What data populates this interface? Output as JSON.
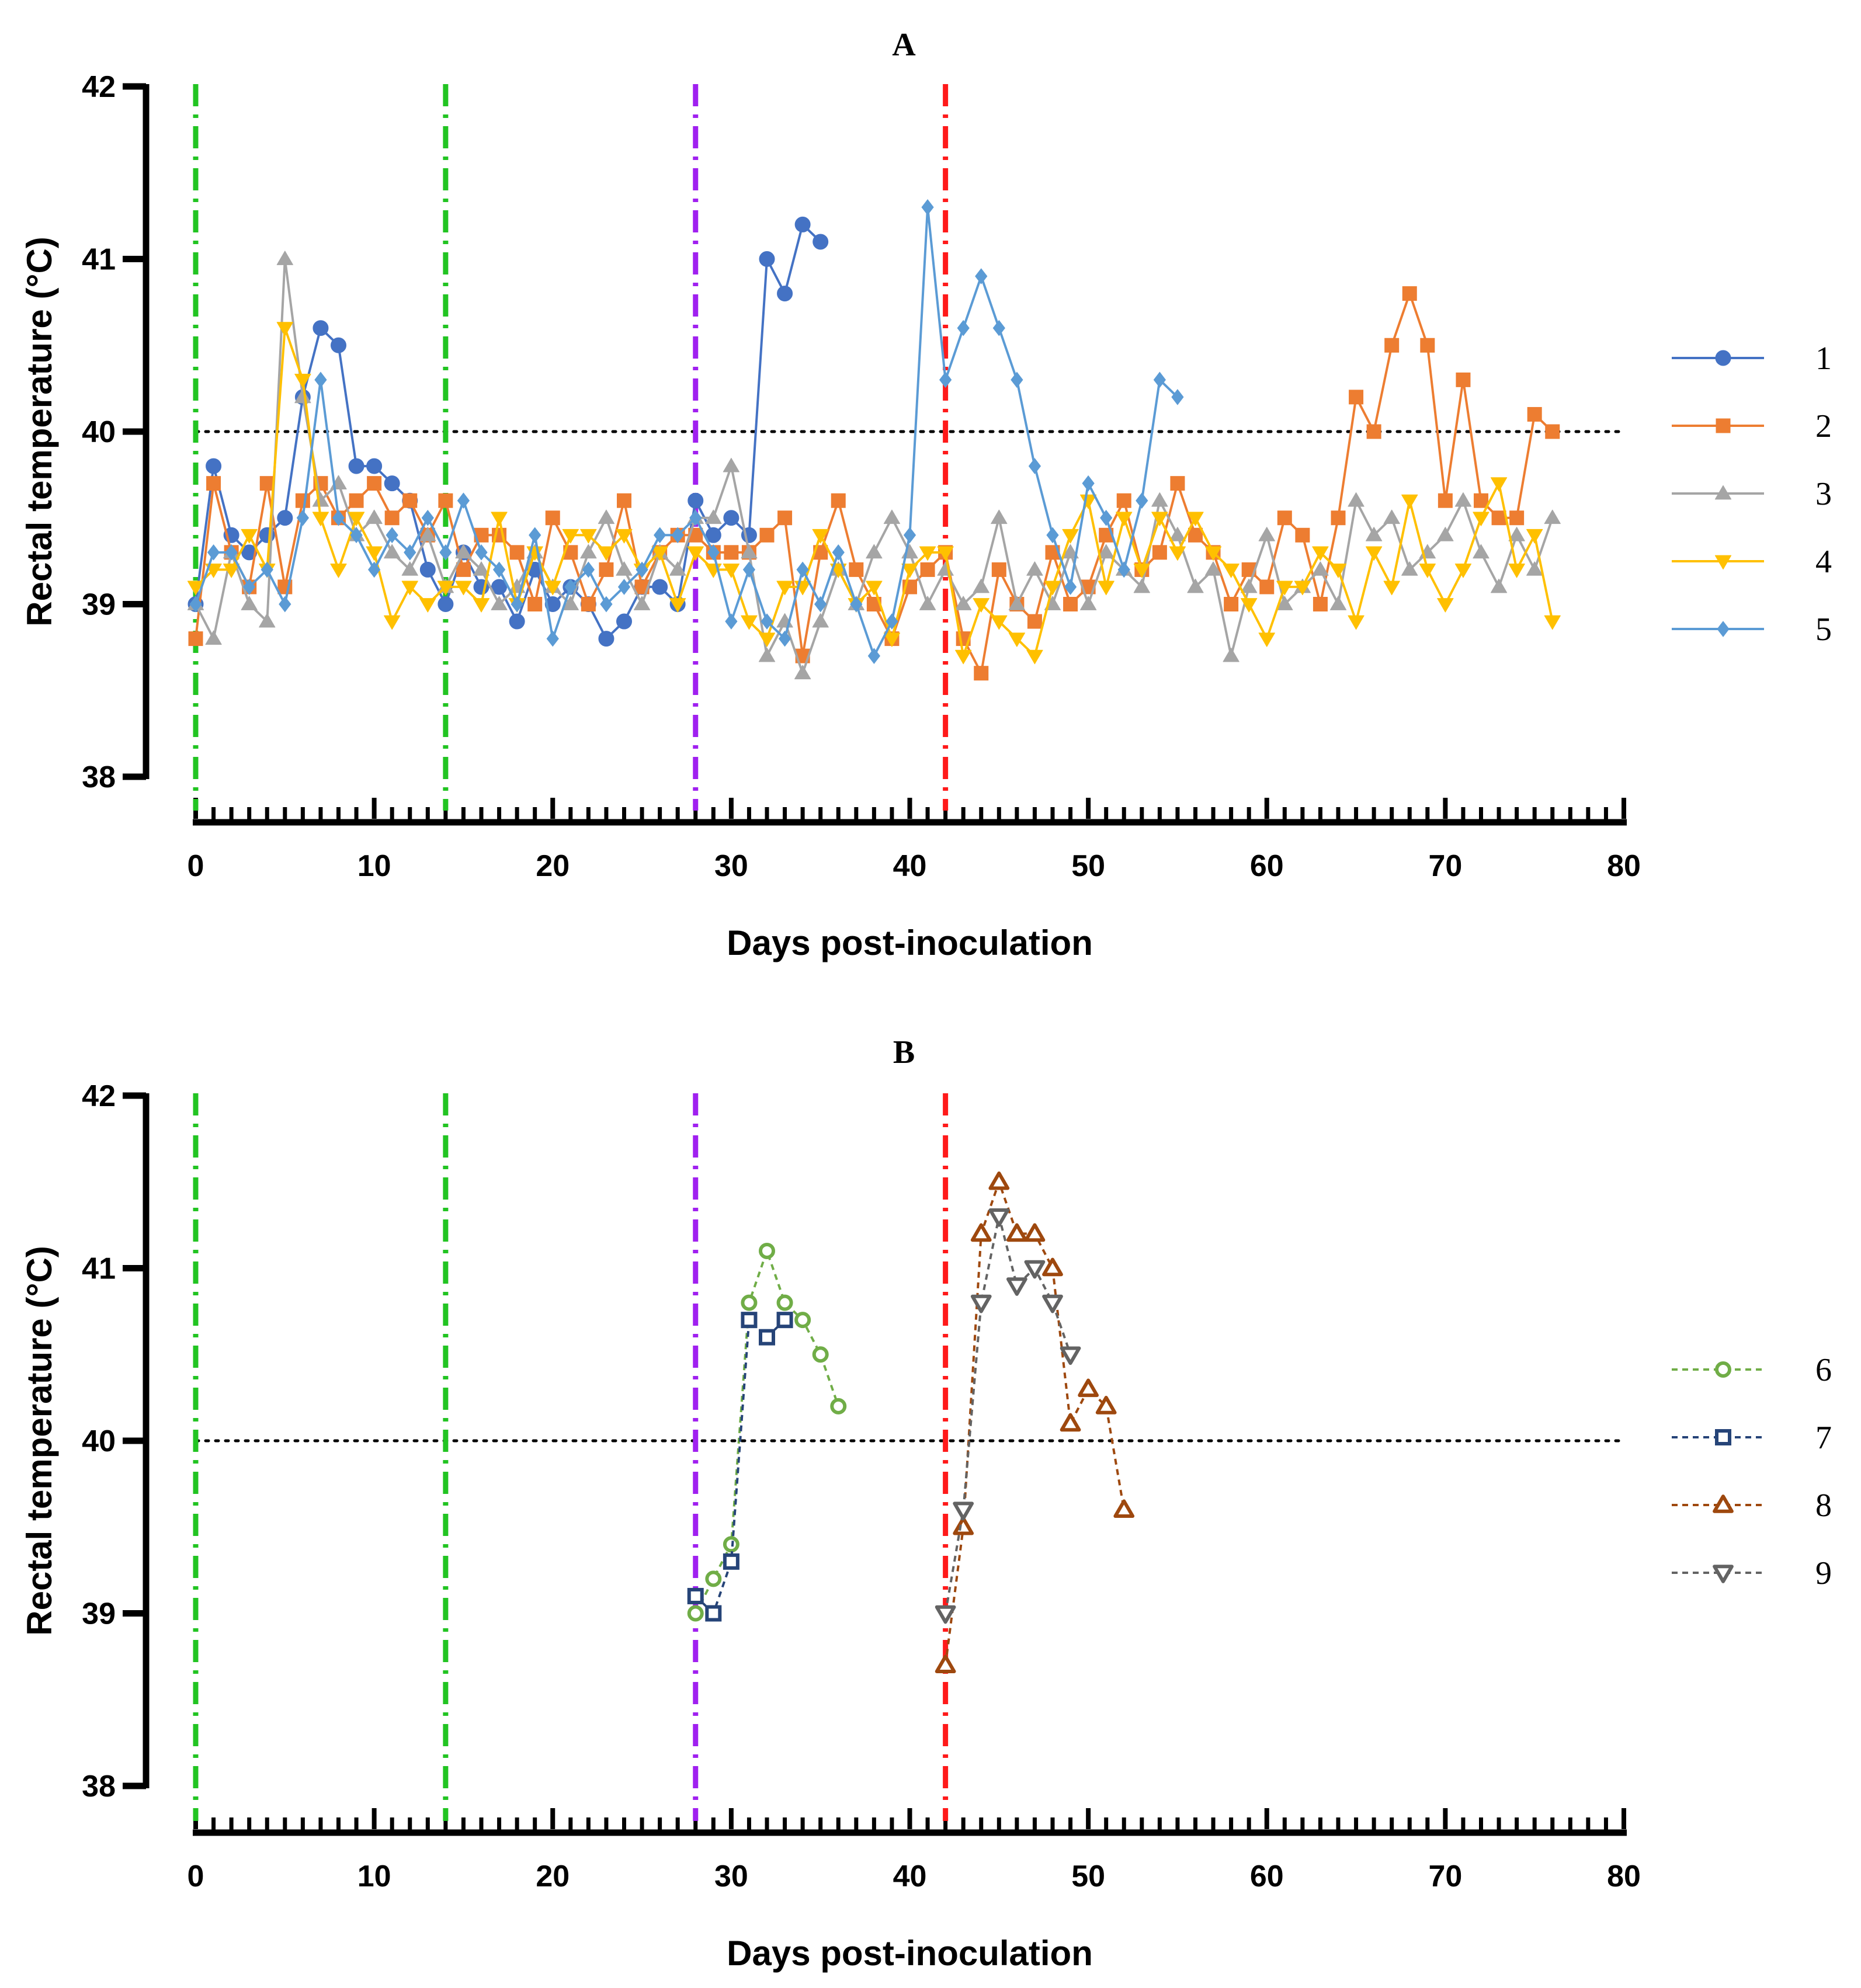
{
  "chart_data": [
    {
      "type": "line",
      "title": "A",
      "xlabel": "Days post-inoculation",
      "ylabel": "Rectal temperature (°C)",
      "xlim": [
        0,
        80
      ],
      "ylim": [
        38,
        42
      ],
      "xticks": [
        0,
        10,
        20,
        30,
        40,
        50,
        60,
        70,
        80
      ],
      "yticks": [
        38,
        39,
        40,
        41,
        42
      ],
      "threshold": 40,
      "event_lines": [
        {
          "x": 0,
          "color": "#22c422"
        },
        {
          "x": 14,
          "color": "#22c422"
        },
        {
          "x": 28,
          "color": "#a020f0"
        },
        {
          "x": 42,
          "color": "#ff1a1a"
        }
      ],
      "legend_position": "right",
      "series": [
        {
          "name": "1",
          "color": "#4472c4",
          "marker": "circle",
          "dash": false,
          "x": [
            0,
            1,
            2,
            3,
            4,
            5,
            6,
            7,
            8,
            9,
            10,
            11,
            12,
            13,
            14,
            15,
            16,
            17,
            18,
            19,
            20,
            21,
            22,
            23,
            24,
            25,
            26,
            27,
            28,
            29,
            30,
            31,
            32,
            33,
            34,
            35
          ],
          "y": [
            39.0,
            39.8,
            39.4,
            39.3,
            39.4,
            39.5,
            40.2,
            40.6,
            40.5,
            39.8,
            39.8,
            39.7,
            39.6,
            39.2,
            39.0,
            39.3,
            39.1,
            39.1,
            38.9,
            39.2,
            39.0,
            39.1,
            39.0,
            38.8,
            38.9,
            39.1,
            39.1,
            39.0,
            39.6,
            39.4,
            39.5,
            39.4,
            41.0,
            40.8,
            41.2,
            41.1
          ]
        },
        {
          "name": "2",
          "color": "#ed7d31",
          "marker": "square",
          "dash": false,
          "x": [
            0,
            1,
            2,
            3,
            4,
            5,
            6,
            7,
            8,
            9,
            10,
            11,
            12,
            13,
            14,
            15,
            16,
            17,
            18,
            19,
            20,
            21,
            22,
            23,
            24,
            25,
            26,
            27,
            28,
            29,
            30,
            31,
            32,
            33,
            34,
            35,
            36,
            37,
            38,
            39,
            40,
            41,
            42,
            43,
            44,
            45,
            46,
            47,
            48,
            49,
            50,
            51,
            52,
            53,
            54,
            55,
            56,
            57,
            58,
            59,
            60,
            61,
            62,
            63,
            64,
            65,
            66,
            67,
            68,
            69,
            70,
            71,
            72,
            73,
            74,
            75,
            76
          ],
          "y": [
            38.8,
            39.7,
            39.3,
            39.1,
            39.7,
            39.1,
            39.6,
            39.7,
            39.5,
            39.6,
            39.7,
            39.5,
            39.6,
            39.4,
            39.6,
            39.2,
            39.4,
            39.4,
            39.3,
            39.0,
            39.5,
            39.3,
            39.0,
            39.2,
            39.6,
            39.1,
            39.3,
            39.4,
            39.4,
            39.3,
            39.3,
            39.3,
            39.4,
            39.5,
            38.7,
            39.3,
            39.6,
            39.2,
            39.0,
            38.8,
            39.1,
            39.2,
            39.3,
            38.8,
            38.6,
            39.2,
            39.0,
            38.9,
            39.3,
            39.0,
            39.1,
            39.4,
            39.6,
            39.2,
            39.3,
            39.7,
            39.4,
            39.3,
            39.0,
            39.2,
            39.1,
            39.5,
            39.4,
            39.0,
            39.5,
            40.2,
            40.0,
            40.5,
            40.8,
            40.5,
            39.6,
            40.3,
            39.6,
            39.5,
            39.5,
            40.1,
            40.0
          ]
        },
        {
          "name": "3",
          "color": "#a5a5a5",
          "marker": "triangle-up",
          "dash": false,
          "x": [
            0,
            1,
            2,
            3,
            4,
            5,
            6,
            7,
            8,
            9,
            10,
            11,
            12,
            13,
            14,
            15,
            16,
            17,
            18,
            19,
            20,
            21,
            22,
            23,
            24,
            25,
            26,
            27,
            28,
            29,
            30,
            31,
            32,
            33,
            34,
            35,
            36,
            37,
            38,
            39,
            40,
            41,
            42,
            43,
            44,
            45,
            46,
            47,
            48,
            49,
            50,
            51,
            52,
            53,
            54,
            55,
            56,
            57,
            58,
            59,
            60,
            61,
            62,
            63,
            64,
            65,
            66,
            67,
            68,
            69,
            70,
            71,
            72,
            73,
            74,
            75,
            76
          ],
          "y": [
            39.0,
            38.8,
            39.3,
            39.0,
            38.9,
            41.0,
            40.2,
            39.6,
            39.7,
            39.4,
            39.5,
            39.3,
            39.2,
            39.4,
            39.1,
            39.3,
            39.2,
            39.0,
            39.1,
            39.3,
            39.1,
            39.0,
            39.3,
            39.5,
            39.2,
            39.0,
            39.3,
            39.2,
            39.5,
            39.5,
            39.8,
            39.3,
            38.7,
            38.9,
            38.6,
            38.9,
            39.2,
            39.0,
            39.3,
            39.5,
            39.3,
            39.0,
            39.2,
            39.0,
            39.1,
            39.5,
            39.0,
            39.2,
            39.0,
            39.3,
            39.0,
            39.3,
            39.2,
            39.1,
            39.6,
            39.4,
            39.1,
            39.2,
            38.7,
            39.1,
            39.4,
            39.0,
            39.1,
            39.2,
            39.0,
            39.6,
            39.4,
            39.5,
            39.2,
            39.3,
            39.4,
            39.6,
            39.3,
            39.1,
            39.4,
            39.2,
            39.5
          ]
        },
        {
          "name": "4",
          "color": "#ffc000",
          "marker": "triangle-down",
          "dash": false,
          "x": [
            0,
            1,
            2,
            3,
            4,
            5,
            6,
            7,
            8,
            9,
            10,
            11,
            12,
            13,
            14,
            15,
            16,
            17,
            18,
            19,
            20,
            21,
            22,
            23,
            24,
            25,
            26,
            27,
            28,
            29,
            30,
            31,
            32,
            33,
            34,
            35,
            36,
            37,
            38,
            39,
            40,
            41,
            42,
            43,
            44,
            45,
            46,
            47,
            48,
            49,
            50,
            51,
            52,
            53,
            54,
            55,
            56,
            57,
            58,
            59,
            60,
            61,
            62,
            63,
            64,
            65,
            66,
            67,
            68,
            69,
            70,
            71,
            72,
            73,
            74,
            75,
            76
          ],
          "y": [
            39.1,
            39.2,
            39.2,
            39.4,
            39.2,
            40.6,
            40.3,
            39.5,
            39.2,
            39.5,
            39.3,
            38.9,
            39.1,
            39.0,
            39.1,
            39.1,
            39.0,
            39.5,
            39.0,
            39.3,
            39.1,
            39.4,
            39.4,
            39.3,
            39.4,
            39.2,
            39.3,
            39.0,
            39.3,
            39.2,
            39.2,
            38.9,
            38.8,
            39.1,
            39.1,
            39.4,
            39.2,
            39.0,
            39.1,
            38.8,
            39.2,
            39.3,
            39.3,
            38.7,
            39.0,
            38.9,
            38.8,
            38.7,
            39.1,
            39.4,
            39.6,
            39.1,
            39.5,
            39.2,
            39.5,
            39.3,
            39.5,
            39.3,
            39.2,
            39.0,
            38.8,
            39.1,
            39.1,
            39.3,
            39.2,
            38.9,
            39.3,
            39.1,
            39.6,
            39.2,
            39.0,
            39.2,
            39.5,
            39.7,
            39.2,
            39.4,
            38.9
          ]
        },
        {
          "name": "5",
          "color": "#5b9bd5",
          "marker": "diamond",
          "dash": false,
          "x": [
            0,
            1,
            2,
            3,
            4,
            5,
            6,
            7,
            8,
            9,
            10,
            11,
            12,
            13,
            14,
            15,
            16,
            17,
            18,
            19,
            20,
            21,
            22,
            23,
            24,
            25,
            26,
            27,
            28,
            29,
            30,
            31,
            32,
            33,
            34,
            35,
            36,
            37,
            38,
            39,
            40,
            41,
            42,
            43,
            44,
            45,
            46,
            47,
            48,
            49,
            50,
            51,
            52,
            53,
            54,
            55
          ],
          "y": [
            39.0,
            39.3,
            39.3,
            39.1,
            39.2,
            39.0,
            39.5,
            40.3,
            39.5,
            39.4,
            39.2,
            39.4,
            39.3,
            39.5,
            39.3,
            39.6,
            39.3,
            39.2,
            39.0,
            39.4,
            38.8,
            39.1,
            39.2,
            39.0,
            39.1,
            39.2,
            39.4,
            39.4,
            39.5,
            39.3,
            38.9,
            39.2,
            38.9,
            38.8,
            39.2,
            39.0,
            39.3,
            39.0,
            38.7,
            38.9,
            39.4,
            41.3,
            40.3,
            40.6,
            40.9,
            40.6,
            40.3,
            39.8,
            39.4,
            39.1,
            39.7,
            39.5,
            39.2,
            39.6,
            40.3,
            40.2
          ]
        }
      ]
    },
    {
      "type": "line",
      "title": "B",
      "xlabel": "Days post-inoculation",
      "ylabel": "Rectal temperature (°C)",
      "xlim": [
        0,
        80
      ],
      "ylim": [
        38,
        42
      ],
      "xticks": [
        0,
        10,
        20,
        30,
        40,
        50,
        60,
        70,
        80
      ],
      "yticks": [
        38,
        39,
        40,
        41,
        42
      ],
      "threshold": 40,
      "event_lines": [
        {
          "x": 0,
          "color": "#22c422"
        },
        {
          "x": 14,
          "color": "#22c422"
        },
        {
          "x": 28,
          "color": "#a020f0"
        },
        {
          "x": 42,
          "color": "#ff1a1a"
        }
      ],
      "legend_position": "right",
      "series": [
        {
          "name": "6",
          "color": "#70ad47",
          "marker": "circle-open",
          "dash": true,
          "x": [
            28,
            29,
            30,
            31,
            32,
            33,
            34,
            35,
            36
          ],
          "y": [
            39.0,
            39.2,
            39.4,
            40.8,
            41.1,
            40.8,
            40.7,
            40.5,
            40.2
          ]
        },
        {
          "name": "7",
          "color": "#264478",
          "marker": "square-open",
          "dash": true,
          "x": [
            28,
            29,
            30,
            31,
            32,
            33
          ],
          "y": [
            39.1,
            39.0,
            39.3,
            40.7,
            40.6,
            40.7
          ]
        },
        {
          "name": "8",
          "color": "#9e480e",
          "marker": "triangle-up-open",
          "dash": true,
          "x": [
            42,
            43,
            44,
            45,
            46,
            47,
            48,
            49,
            50,
            51,
            52
          ],
          "y": [
            38.7,
            39.5,
            41.2,
            41.5,
            41.2,
            41.2,
            41.0,
            40.1,
            40.3,
            40.2,
            39.6
          ]
        },
        {
          "name": "9",
          "color": "#636363",
          "marker": "triangle-down-open",
          "dash": true,
          "x": [
            42,
            43,
            44,
            45,
            46,
            47,
            48,
            49
          ],
          "y": [
            39.0,
            39.6,
            40.8,
            41.3,
            40.9,
            41.0,
            40.8,
            40.5
          ]
        }
      ]
    }
  ]
}
